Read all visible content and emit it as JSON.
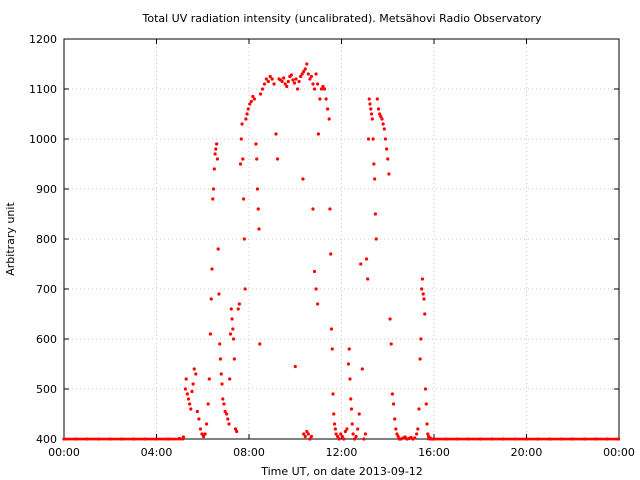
{
  "chart_data": {
    "type": "scatter",
    "title": "Total UV radiation intensity (uncalibrated). Metsähovi Radio Observatory",
    "xlabel": "Time UT, on date 2013-09-12",
    "ylabel": "Arbitrary unit",
    "xlim": [
      "00:00",
      "24:00"
    ],
    "ylim": [
      400,
      1200
    ],
    "x_ticks": [
      "00:00",
      "04:00",
      "08:00",
      "12:00",
      "16:00",
      "20:00",
      "00:00"
    ],
    "y_ticks": [
      400,
      500,
      600,
      700,
      800,
      900,
      1000,
      1100,
      1200
    ],
    "grid": true,
    "series": [
      {
        "color": "#ff0000",
        "marker": "dot",
        "points": [
          [
            "00:00",
            400
          ],
          [
            "00:30",
            400
          ],
          [
            "01:00",
            400
          ],
          [
            "01:30",
            400
          ],
          [
            "02:00",
            400
          ],
          [
            "02:30",
            400
          ],
          [
            "03:00",
            400
          ],
          [
            "03:30",
            400
          ],
          [
            "04:00",
            400
          ],
          [
            "04:30",
            400
          ],
          [
            "05:00",
            401
          ],
          [
            "05:10",
            404
          ],
          [
            "05:15",
            500
          ],
          [
            "05:17",
            520
          ],
          [
            "05:20",
            490
          ],
          [
            "05:23",
            480
          ],
          [
            "05:26",
            470
          ],
          [
            "05:29",
            460
          ],
          [
            "05:32",
            495
          ],
          [
            "05:35",
            510
          ],
          [
            "05:38",
            540
          ],
          [
            "05:42",
            530
          ],
          [
            "05:46",
            455
          ],
          [
            "05:50",
            440
          ],
          [
            "05:54",
            420
          ],
          [
            "05:58",
            410
          ],
          [
            "06:02",
            405
          ],
          [
            "06:06",
            410
          ],
          [
            "06:10",
            430
          ],
          [
            "06:14",
            470
          ],
          [
            "06:17",
            520
          ],
          [
            "06:20",
            610
          ],
          [
            "06:22",
            680
          ],
          [
            "06:24",
            740
          ],
          [
            "06:26",
            880
          ],
          [
            "06:28",
            900
          ],
          [
            "06:30",
            940
          ],
          [
            "06:32",
            970
          ],
          [
            "06:34",
            980
          ],
          [
            "06:36",
            990
          ],
          [
            "06:38",
            960
          ],
          [
            "06:40",
            780
          ],
          [
            "06:42",
            690
          ],
          [
            "06:44",
            590
          ],
          [
            "06:46",
            560
          ],
          [
            "06:48",
            530
          ],
          [
            "06:50",
            510
          ],
          [
            "06:52",
            480
          ],
          [
            "06:55",
            470
          ],
          [
            "06:58",
            455
          ],
          [
            "07:02",
            450
          ],
          [
            "07:05",
            440
          ],
          [
            "07:08",
            430
          ],
          [
            "07:10",
            520
          ],
          [
            "07:12",
            610
          ],
          [
            "07:14",
            660
          ],
          [
            "07:16",
            640
          ],
          [
            "07:18",
            620
          ],
          [
            "07:20",
            600
          ],
          [
            "07:22",
            560
          ],
          [
            "07:25",
            420
          ],
          [
            "07:28",
            415
          ],
          [
            "07:32",
            660
          ],
          [
            "07:35",
            670
          ],
          [
            "07:38",
            950
          ],
          [
            "07:40",
            1000
          ],
          [
            "07:42",
            1030
          ],
          [
            "07:44",
            960
          ],
          [
            "07:46",
            880
          ],
          [
            "07:48",
            800
          ],
          [
            "07:50",
            700
          ],
          [
            "07:52",
            1040
          ],
          [
            "07:55",
            1050
          ],
          [
            "07:58",
            1060
          ],
          [
            "08:02",
            1070
          ],
          [
            "08:06",
            1075
          ],
          [
            "08:10",
            1085
          ],
          [
            "08:14",
            1080
          ],
          [
            "08:18",
            990
          ],
          [
            "08:20",
            960
          ],
          [
            "08:22",
            900
          ],
          [
            "08:24",
            860
          ],
          [
            "08:26",
            820
          ],
          [
            "08:28",
            590
          ],
          [
            "08:30",
            1090
          ],
          [
            "08:35",
            1100
          ],
          [
            "08:40",
            1110
          ],
          [
            "08:45",
            1120
          ],
          [
            "08:50",
            1115
          ],
          [
            "08:55",
            1125
          ],
          [
            "09:00",
            1120
          ],
          [
            "09:05",
            1110
          ],
          [
            "09:10",
            1010
          ],
          [
            "09:14",
            960
          ],
          [
            "09:18",
            1120
          ],
          [
            "09:22",
            1118
          ],
          [
            "09:26",
            1115
          ],
          [
            "09:30",
            1122
          ],
          [
            "09:34",
            1110
          ],
          [
            "09:38",
            1105
          ],
          [
            "09:42",
            1115
          ],
          [
            "09:46",
            1125
          ],
          [
            "09:50",
            1128
          ],
          [
            "09:54",
            1118
          ],
          [
            "09:58",
            1112
          ],
          [
            "10:02",
            1120
          ],
          [
            "10:06",
            1100
          ],
          [
            "10:10",
            1115
          ],
          [
            "10:14",
            1125
          ],
          [
            "10:18",
            1130
          ],
          [
            "10:22",
            1135
          ],
          [
            "10:26",
            1140
          ],
          [
            "10:30",
            1150
          ],
          [
            "10:34",
            1130
          ],
          [
            "10:38",
            1120
          ],
          [
            "10:42",
            1125
          ],
          [
            "10:46",
            1110
          ],
          [
            "10:50",
            1100
          ],
          [
            "10:54",
            1130
          ],
          [
            "10:58",
            1110
          ],
          [
            "10:00",
            545
          ],
          [
            "10:20",
            920
          ],
          [
            "10:22",
            410
          ],
          [
            "10:26",
            405
          ],
          [
            "10:30",
            415
          ],
          [
            "10:34",
            410
          ],
          [
            "10:38",
            400
          ],
          [
            "10:42",
            405
          ],
          [
            "10:46",
            860
          ],
          [
            "10:50",
            735
          ],
          [
            "10:54",
            700
          ],
          [
            "10:58",
            670
          ],
          [
            "11:00",
            1010
          ],
          [
            "11:04",
            1080
          ],
          [
            "11:08",
            1100
          ],
          [
            "11:12",
            1105
          ],
          [
            "11:16",
            1100
          ],
          [
            "11:20",
            1080
          ],
          [
            "11:24",
            1060
          ],
          [
            "11:28",
            1040
          ],
          [
            "11:30",
            860
          ],
          [
            "11:32",
            770
          ],
          [
            "11:34",
            620
          ],
          [
            "11:36",
            580
          ],
          [
            "11:38",
            490
          ],
          [
            "11:40",
            450
          ],
          [
            "11:42",
            430
          ],
          [
            "11:44",
            420
          ],
          [
            "11:46",
            410
          ],
          [
            "11:50",
            405
          ],
          [
            "11:54",
            400
          ],
          [
            "11:58",
            410
          ],
          [
            "12:02",
            405
          ],
          [
            "12:06",
            400
          ],
          [
            "12:10",
            415
          ],
          [
            "12:14",
            420
          ],
          [
            "12:18",
            550
          ],
          [
            "12:20",
            580
          ],
          [
            "12:22",
            520
          ],
          [
            "12:24",
            480
          ],
          [
            "12:26",
            460
          ],
          [
            "12:28",
            430
          ],
          [
            "12:30",
            410
          ],
          [
            "12:34",
            400
          ],
          [
            "12:38",
            405
          ],
          [
            "12:42",
            420
          ],
          [
            "12:46",
            450
          ],
          [
            "12:50",
            750
          ],
          [
            "12:54",
            540
          ],
          [
            "12:58",
            400
          ],
          [
            "13:02",
            410
          ],
          [
            "13:05",
            760
          ],
          [
            "13:08",
            720
          ],
          [
            "13:10",
            1000
          ],
          [
            "13:12",
            1080
          ],
          [
            "13:14",
            1070
          ],
          [
            "13:16",
            1060
          ],
          [
            "13:18",
            1050
          ],
          [
            "13:20",
            1040
          ],
          [
            "13:22",
            1000
          ],
          [
            "13:24",
            950
          ],
          [
            "13:26",
            920
          ],
          [
            "13:28",
            850
          ],
          [
            "13:30",
            800
          ],
          [
            "13:33",
            1080
          ],
          [
            "13:36",
            1060
          ],
          [
            "13:39",
            1050
          ],
          [
            "13:42",
            1045
          ],
          [
            "13:45",
            1040
          ],
          [
            "13:48",
            1030
          ],
          [
            "13:51",
            1020
          ],
          [
            "13:54",
            1000
          ],
          [
            "13:57",
            980
          ],
          [
            "14:00",
            960
          ],
          [
            "14:03",
            930
          ],
          [
            "14:06",
            640
          ],
          [
            "14:09",
            590
          ],
          [
            "14:12",
            490
          ],
          [
            "14:15",
            470
          ],
          [
            "14:18",
            440
          ],
          [
            "14:21",
            420
          ],
          [
            "14:24",
            410
          ],
          [
            "14:27",
            405
          ],
          [
            "14:30",
            400
          ],
          [
            "14:35",
            400
          ],
          [
            "14:40",
            402
          ],
          [
            "14:45",
            404
          ],
          [
            "14:50",
            400
          ],
          [
            "14:55",
            401
          ],
          [
            "15:00",
            403
          ],
          [
            "15:05",
            400
          ],
          [
            "15:10",
            402
          ],
          [
            "15:15",
            410
          ],
          [
            "15:18",
            420
          ],
          [
            "15:21",
            460
          ],
          [
            "15:24",
            560
          ],
          [
            "15:26",
            600
          ],
          [
            "15:28",
            700
          ],
          [
            "15:30",
            720
          ],
          [
            "15:32",
            690
          ],
          [
            "15:34",
            680
          ],
          [
            "15:36",
            650
          ],
          [
            "15:38",
            500
          ],
          [
            "15:40",
            470
          ],
          [
            "15:42",
            430
          ],
          [
            "15:44",
            410
          ],
          [
            "15:46",
            405
          ],
          [
            "15:50",
            402
          ],
          [
            "15:55",
            400
          ],
          [
            "16:00",
            400
          ],
          [
            "16:30",
            400
          ],
          [
            "17:00",
            400
          ],
          [
            "17:30",
            400
          ],
          [
            "18:00",
            400
          ],
          [
            "18:30",
            400
          ],
          [
            "19:00",
            400
          ],
          [
            "19:30",
            400
          ],
          [
            "20:00",
            400
          ],
          [
            "20:30",
            400
          ],
          [
            "21:00",
            400
          ],
          [
            "21:30",
            400
          ],
          [
            "22:00",
            400
          ],
          [
            "22:30",
            400
          ],
          [
            "23:00",
            400
          ],
          [
            "23:30",
            400
          ],
          [
            "23:59",
            400
          ]
        ]
      }
    ]
  }
}
